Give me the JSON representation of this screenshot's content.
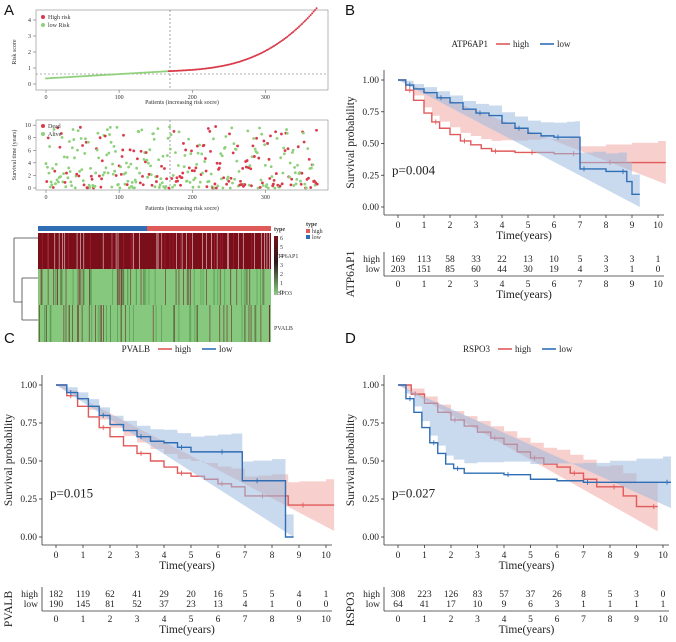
{
  "panels": {
    "A": "A",
    "B": "B",
    "C": "C",
    "D": "D"
  },
  "colors": {
    "high": "#e05a5a",
    "low": "#2f6eb5",
    "high_fill": "#f0a8a4",
    "low_fill": "#9dbbe0",
    "risk_high": "#d93a4a",
    "risk_low": "#8fd07a",
    "heat_high": "#7a0f1a",
    "heat_low": "#86c97e"
  },
  "panelA": {
    "riskplot": {
      "ylabel": "Risk score",
      "xlabel": "Patients (increasing risk socre)",
      "legend": [
        "High risk",
        "low Risk"
      ],
      "yticks": [
        "0",
        "1",
        "2",
        "3",
        "4"
      ],
      "xticks": [
        "0",
        "100",
        "200",
        "300"
      ]
    },
    "survplot": {
      "ylabel": "Survival time (years)",
      "xlabel": "Patients (increasing risk socre)",
      "legend": [
        "Dead",
        "Alive"
      ],
      "yticks": [
        "0",
        "2",
        "4",
        "6",
        "8",
        "10"
      ],
      "xticks": [
        "0",
        "100",
        "200",
        "300"
      ]
    },
    "heatmap": {
      "rows": [
        "ATP6AP1",
        "RSPO3",
        "PVALB"
      ],
      "type_title": "type",
      "legend_title": "type",
      "legend_items": [
        "high",
        "low"
      ],
      "scale_ticks": [
        "6",
        "5",
        "4",
        "3",
        "2",
        "1",
        "0"
      ]
    }
  },
  "chart_data": [
    {
      "type": "line",
      "panel": "B",
      "gene": "ATP6AP1",
      "xlabel": "Time(years)",
      "ylabel": "Survival probability",
      "xlim": [
        0,
        10
      ],
      "ylim": [
        0,
        1
      ],
      "xticks": [
        "0",
        "1",
        "2",
        "3",
        "4",
        "5",
        "6",
        "7",
        "8",
        "9",
        "10"
      ],
      "yticks": [
        "0.00",
        "0.25",
        "0.50",
        "0.75",
        "1.00"
      ],
      "pvalue": "p=0.004",
      "series": [
        {
          "name": "high",
          "x": [
            0,
            0.3,
            0.6,
            1,
            1.3,
            1.6,
            2,
            2.4,
            2.8,
            3.2,
            3.6,
            4,
            4.5,
            5,
            5.5,
            6,
            6.6,
            6.9,
            7,
            8,
            9,
            10
          ],
          "y": [
            1,
            0.92,
            0.84,
            0.74,
            0.67,
            0.62,
            0.57,
            0.52,
            0.49,
            0.46,
            0.44,
            0.44,
            0.43,
            0.43,
            0.43,
            0.42,
            0.42,
            0.42,
            0.35,
            0.35,
            0.35,
            0.35
          ]
        },
        {
          "name": "low",
          "x": [
            0,
            0.3,
            0.6,
            1,
            1.5,
            2,
            2.5,
            3,
            3.5,
            4,
            4.5,
            5,
            5.5,
            6,
            6.5,
            6.8,
            7,
            7.5,
            8,
            8.5,
            8.8,
            9
          ],
          "y": [
            1,
            0.96,
            0.93,
            0.9,
            0.86,
            0.82,
            0.77,
            0.74,
            0.72,
            0.66,
            0.62,
            0.58,
            0.56,
            0.55,
            0.55,
            0.55,
            0.3,
            0.3,
            0.28,
            0.28,
            0.2,
            0.1
          ]
        }
      ],
      "risk_table": {
        "row_label": "ATP6AP1",
        "high": [
          "169",
          "113",
          "58",
          "33",
          "22",
          "13",
          "10",
          "5",
          "3",
          "3",
          "1"
        ],
        "low": [
          "203",
          "151",
          "85",
          "60",
          "44",
          "30",
          "19",
          "4",
          "3",
          "1",
          "0"
        ]
      }
    },
    {
      "type": "line",
      "panel": "C",
      "gene": "PVALB",
      "xlabel": "Time(years)",
      "ylabel": "Survival probability",
      "xlim": [
        0,
        10
      ],
      "ylim": [
        0,
        1
      ],
      "xticks": [
        "0",
        "1",
        "2",
        "3",
        "4",
        "5",
        "6",
        "7",
        "8",
        "9",
        "10"
      ],
      "yticks": [
        "0.00",
        "0.25",
        "0.50",
        "0.75",
        "1.00"
      ],
      "pvalue": "p=0.015",
      "series": [
        {
          "name": "high",
          "x": [
            0,
            0.4,
            0.8,
            1.2,
            1.6,
            2,
            2.5,
            3,
            3.5,
            4,
            4.5,
            5,
            5.5,
            6,
            6.5,
            7,
            7.5,
            8,
            8.6,
            9,
            10
          ],
          "y": [
            1,
            0.93,
            0.86,
            0.79,
            0.72,
            0.66,
            0.6,
            0.55,
            0.5,
            0.46,
            0.42,
            0.4,
            0.38,
            0.35,
            0.33,
            0.27,
            0.27,
            0.27,
            0.21,
            0.21,
            0.21
          ]
        },
        {
          "name": "low",
          "x": [
            0,
            0.4,
            0.8,
            1.2,
            1.6,
            2,
            2.5,
            3,
            3.5,
            4,
            4.5,
            5,
            5.5,
            6,
            6.5,
            6.9,
            7.3,
            8,
            8.5
          ],
          "y": [
            1,
            0.95,
            0.91,
            0.86,
            0.8,
            0.74,
            0.7,
            0.66,
            0.63,
            0.62,
            0.59,
            0.56,
            0.56,
            0.56,
            0.56,
            0.37,
            0.37,
            0.37,
            0.0
          ]
        }
      ],
      "risk_table": {
        "row_label": "PVALB",
        "high": [
          "182",
          "119",
          "62",
          "41",
          "29",
          "20",
          "16",
          "5",
          "5",
          "4",
          "1"
        ],
        "low": [
          "190",
          "145",
          "81",
          "52",
          "37",
          "23",
          "13",
          "4",
          "1",
          "0",
          "0"
        ]
      }
    },
    {
      "type": "line",
      "panel": "D",
      "gene": "RSPO3",
      "xlabel": "Time(years)",
      "ylabel": "Survival probability",
      "xlim": [
        0,
        10
      ],
      "ylim": [
        0,
        1
      ],
      "xticks": [
        "0",
        "1",
        "2",
        "3",
        "4",
        "5",
        "6",
        "7",
        "8",
        "9",
        "10"
      ],
      "yticks": [
        "0.00",
        "0.25",
        "0.50",
        "0.75",
        "1.00"
      ],
      "pvalue": "p=0.027",
      "series": [
        {
          "name": "high",
          "x": [
            0,
            0.5,
            1,
            1.5,
            2,
            2.5,
            3,
            3.5,
            4,
            4.5,
            5,
            5.5,
            6,
            6.5,
            7,
            7.5,
            8,
            8.5,
            9,
            9.5
          ],
          "y": [
            1,
            0.94,
            0.88,
            0.82,
            0.77,
            0.73,
            0.69,
            0.65,
            0.61,
            0.56,
            0.52,
            0.48,
            0.46,
            0.42,
            0.38,
            0.33,
            0.33,
            0.27,
            0.2,
            0.2
          ]
        },
        {
          "name": "low",
          "x": [
            0,
            0.3,
            0.6,
            0.9,
            1.2,
            1.5,
            1.8,
            2.1,
            2.5,
            3,
            4,
            5,
            6,
            7,
            8,
            9,
            10
          ],
          "y": [
            1,
            0.91,
            0.82,
            0.72,
            0.62,
            0.55,
            0.48,
            0.45,
            0.42,
            0.42,
            0.41,
            0.38,
            0.37,
            0.36,
            0.36,
            0.36,
            0.36
          ]
        }
      ],
      "risk_table": {
        "row_label": "RSPO3",
        "high": [
          "308",
          "223",
          "126",
          "83",
          "57",
          "37",
          "26",
          "8",
          "5",
          "3",
          "0"
        ],
        "low": [
          "64",
          "41",
          "17",
          "10",
          "9",
          "6",
          "3",
          "1",
          "1",
          "1",
          "1"
        ]
      }
    }
  ]
}
